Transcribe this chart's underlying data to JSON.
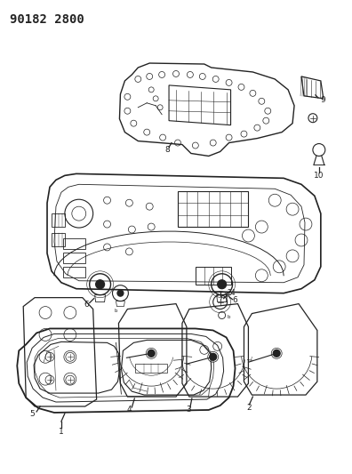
{
  "title": "90182 2800",
  "bg_color": "#ffffff",
  "line_color": "#222222",
  "lw_main": 0.9,
  "lw_thin": 0.5,
  "label_fs": 6.5
}
